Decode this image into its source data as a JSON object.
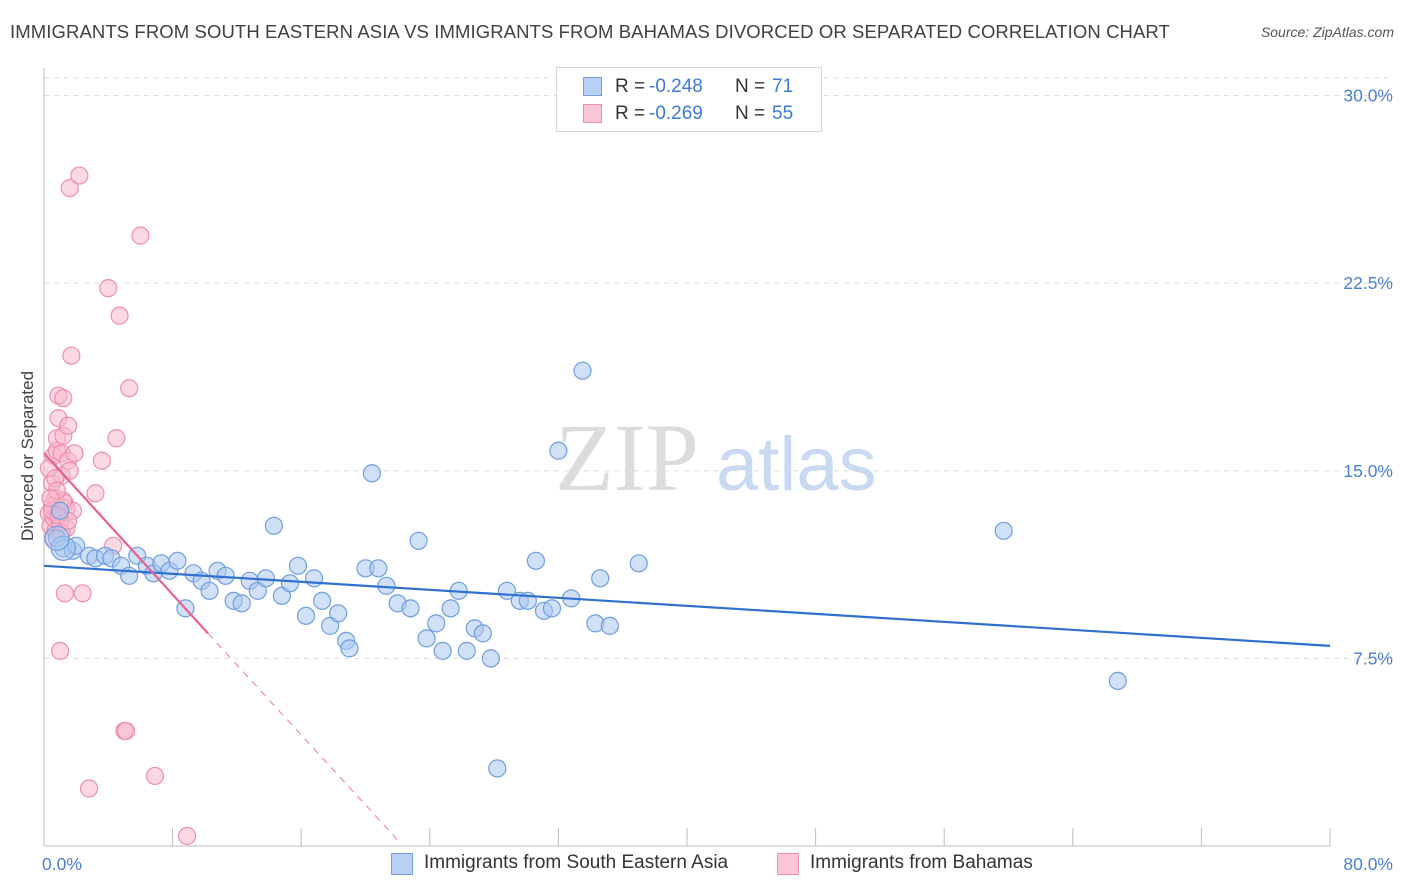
{
  "title": "IMMIGRANTS FROM SOUTH EASTERN ASIA VS IMMIGRANTS FROM BAHAMAS DIVORCED OR SEPARATED CORRELATION CHART",
  "source": "Source: ZipAtlas.com",
  "watermark": {
    "zip": "ZIP",
    "atlas": "atlas"
  },
  "legend": {
    "series1": {
      "r_label": "R =",
      "r_value": "-0.248",
      "n_label": "N =",
      "n_value": "71"
    },
    "series2": {
      "r_label": "R =",
      "r_value": "-0.269",
      "n_label": "N =",
      "n_value": "55"
    }
  },
  "colors": {
    "blue_fill": "#a9c7f0",
    "blue_stroke": "#6f9ee0",
    "blue_line": "#2e6fd0",
    "pink_fill": "#f7b8cb",
    "pink_stroke": "#ec8fae",
    "pink_line": "#e8608f",
    "grid": "#dedede",
    "tick_text": "#4a7fd1"
  },
  "chart_data": {
    "type": "scatter",
    "title": "IMMIGRANTS FROM SOUTH EASTERN ASIA VS IMMIGRANTS FROM BAHAMAS DIVORCED OR SEPARATED CORRELATION CHART",
    "xlabel": "",
    "ylabel": "Divorced or Separated",
    "xlim": [
      0,
      80
    ],
    "ylim": [
      0,
      30.7
    ],
    "x_tick_labels": [
      "0.0%",
      "80.0%"
    ],
    "y_ticks": [
      7.5,
      15.0,
      22.5,
      30.0
    ],
    "y_tick_labels": [
      "7.5%",
      "15.0%",
      "22.5%",
      "30.0%"
    ],
    "grid": true,
    "legend_position": "top-center",
    "series": [
      {
        "name": "Immigrants from South Eastern Asia",
        "color": "#6f9ee0",
        "r": -0.248,
        "n": 71,
        "trend": {
          "x": [
            0,
            80
          ],
          "y": [
            11.2,
            8.0
          ]
        },
        "points": [
          [
            0.8,
            12.3
          ],
          [
            1.2,
            11.9
          ],
          [
            1.8,
            11.8
          ],
          [
            2.0,
            12.0
          ],
          [
            2.8,
            11.6
          ],
          [
            3.2,
            11.5
          ],
          [
            3.8,
            11.6
          ],
          [
            4.2,
            11.5
          ],
          [
            4.8,
            11.2
          ],
          [
            5.3,
            10.8
          ],
          [
            5.8,
            11.6
          ],
          [
            6.4,
            11.2
          ],
          [
            6.8,
            10.9
          ],
          [
            7.3,
            11.3
          ],
          [
            7.8,
            11.0
          ],
          [
            8.3,
            11.4
          ],
          [
            8.8,
            9.5
          ],
          [
            9.3,
            10.9
          ],
          [
            9.8,
            10.6
          ],
          [
            10.3,
            10.2
          ],
          [
            10.8,
            11.0
          ],
          [
            11.3,
            10.8
          ],
          [
            11.8,
            9.8
          ],
          [
            12.3,
            9.7
          ],
          [
            12.8,
            10.6
          ],
          [
            13.3,
            10.2
          ],
          [
            13.8,
            10.7
          ],
          [
            14.3,
            12.8
          ],
          [
            14.8,
            10.0
          ],
          [
            15.3,
            10.5
          ],
          [
            15.8,
            11.2
          ],
          [
            16.3,
            9.2
          ],
          [
            16.8,
            10.7
          ],
          [
            17.3,
            9.8
          ],
          [
            17.8,
            8.8
          ],
          [
            18.3,
            9.3
          ],
          [
            18.8,
            8.2
          ],
          [
            19.0,
            7.9
          ],
          [
            20.0,
            11.1
          ],
          [
            20.4,
            14.9
          ],
          [
            20.8,
            11.1
          ],
          [
            21.3,
            10.4
          ],
          [
            22.0,
            9.7
          ],
          [
            22.8,
            9.5
          ],
          [
            23.3,
            12.2
          ],
          [
            23.8,
            8.3
          ],
          [
            24.4,
            8.9
          ],
          [
            24.8,
            7.8
          ],
          [
            25.3,
            9.5
          ],
          [
            25.8,
            10.2
          ],
          [
            26.3,
            7.8
          ],
          [
            26.8,
            8.7
          ],
          [
            27.3,
            8.5
          ],
          [
            27.8,
            7.5
          ],
          [
            28.2,
            3.1
          ],
          [
            28.8,
            10.2
          ],
          [
            29.6,
            9.8
          ],
          [
            30.1,
            9.8
          ],
          [
            30.6,
            11.4
          ],
          [
            31.1,
            9.4
          ],
          [
            31.6,
            9.5
          ],
          [
            32.0,
            15.8
          ],
          [
            32.8,
            9.9
          ],
          [
            33.5,
            19.0
          ],
          [
            34.3,
            8.9
          ],
          [
            34.6,
            10.7
          ],
          [
            35.2,
            8.8
          ],
          [
            37.0,
            11.3
          ],
          [
            59.7,
            12.6
          ],
          [
            66.8,
            6.6
          ],
          [
            1.0,
            13.4
          ]
        ]
      },
      {
        "name": "Immigrants from Bahamas",
        "color": "#ec8fae",
        "r": -0.269,
        "n": 55,
        "trend": {
          "x": [
            0,
            10.2
          ],
          "y": [
            15.7,
            8.5
          ]
        },
        "trend_dashed": {
          "x": [
            10.2,
            22.2
          ],
          "y": [
            8.5,
            0.1
          ]
        },
        "points": [
          [
            0.3,
            13.3
          ],
          [
            0.4,
            12.8
          ],
          [
            0.5,
            13.6
          ],
          [
            0.5,
            14.5
          ],
          [
            0.6,
            15.6
          ],
          [
            0.6,
            13.1
          ],
          [
            0.7,
            12.6
          ],
          [
            0.7,
            13.9
          ],
          [
            0.8,
            15.8
          ],
          [
            0.8,
            16.3
          ],
          [
            0.9,
            17.1
          ],
          [
            0.9,
            18.0
          ],
          [
            1.0,
            13.3
          ],
          [
            1.0,
            12.9
          ],
          [
            1.1,
            15.7
          ],
          [
            1.1,
            14.8
          ],
          [
            1.2,
            16.4
          ],
          [
            1.2,
            17.9
          ],
          [
            1.3,
            13.7
          ],
          [
            1.3,
            10.1
          ],
          [
            1.4,
            13.5
          ],
          [
            1.5,
            16.8
          ],
          [
            1.5,
            15.4
          ],
          [
            1.6,
            15.0
          ],
          [
            1.6,
            26.3
          ],
          [
            1.7,
            19.6
          ],
          [
            1.8,
            13.4
          ],
          [
            1.0,
            7.8
          ],
          [
            2.2,
            26.8
          ],
          [
            2.4,
            10.1
          ],
          [
            2.8,
            2.3
          ],
          [
            3.2,
            14.1
          ],
          [
            3.6,
            15.4
          ],
          [
            4.0,
            22.3
          ],
          [
            4.3,
            12.0
          ],
          [
            4.5,
            16.3
          ],
          [
            4.7,
            21.2
          ],
          [
            5.0,
            4.6
          ],
          [
            5.1,
            4.6
          ],
          [
            5.3,
            18.3
          ],
          [
            6.0,
            24.4
          ],
          [
            6.9,
            2.8
          ],
          [
            0.5,
            13.4
          ],
          [
            0.9,
            13.2
          ],
          [
            1.4,
            12.7
          ],
          [
            0.3,
            15.1
          ],
          [
            0.7,
            14.7
          ],
          [
            1.2,
            13.8
          ],
          [
            1.9,
            15.7
          ],
          [
            0.6,
            12.3
          ],
          [
            1.1,
            12.5
          ],
          [
            0.8,
            14.2
          ],
          [
            1.5,
            13.0
          ],
          [
            8.9,
            0.4
          ],
          [
            0.4,
            13.9
          ]
        ]
      }
    ]
  }
}
